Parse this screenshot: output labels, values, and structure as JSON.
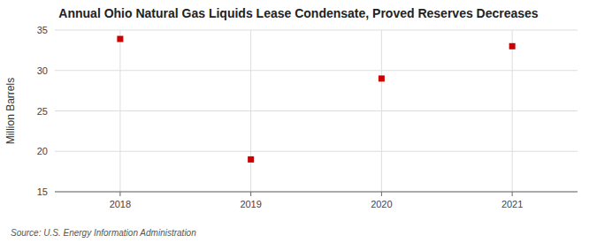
{
  "chart_data": {
    "type": "scatter",
    "title": "Annual Ohio Natural Gas Liquids Lease Condensate, Proved Reserves Decreases",
    "ylabel": "Million Barrels",
    "source": "Source: U.S. Energy Information Administration",
    "x": [
      2018,
      2019,
      2020,
      2021
    ],
    "values": [
      33.9,
      19.0,
      29.0,
      33.0
    ],
    "color": "#cc0000",
    "marker": "square",
    "xlim": [
      2017.5,
      2021.5
    ],
    "xticks": [
      2018,
      2019,
      2020,
      2021
    ],
    "ylim": [
      15,
      35
    ],
    "yticks": [
      15,
      20,
      25,
      30,
      35
    ],
    "grid": true
  }
}
